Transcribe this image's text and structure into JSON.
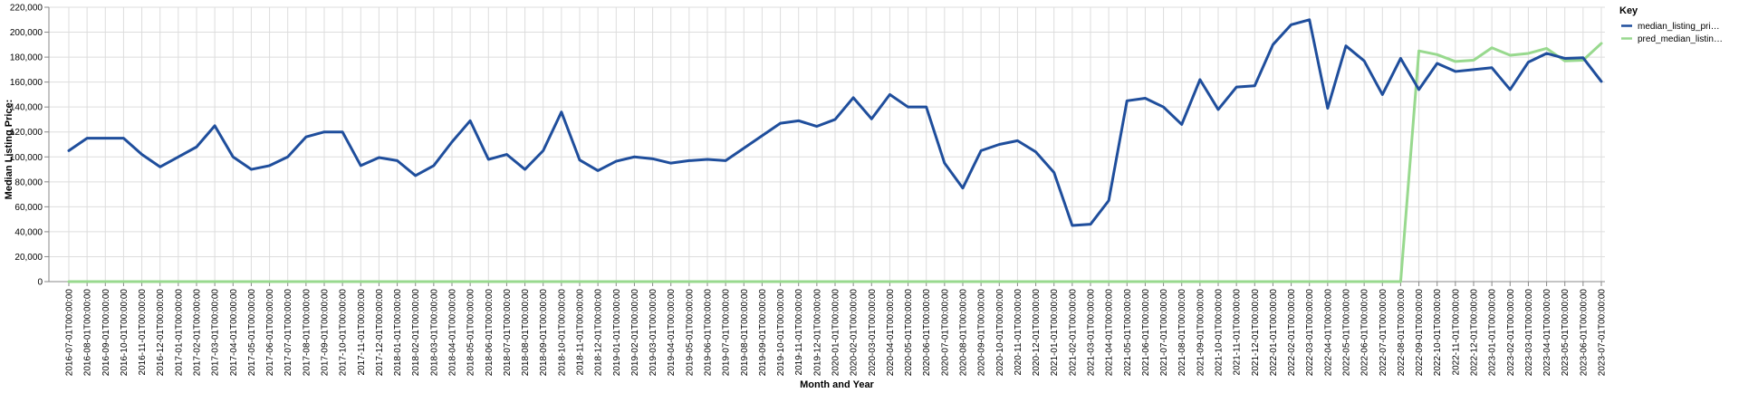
{
  "chart_data": {
    "type": "line",
    "xlabel": "Month and Year",
    "ylabel": "Median Listing Price:",
    "ylim": [
      0,
      220000
    ],
    "yticks": [
      0,
      20000,
      40000,
      60000,
      80000,
      100000,
      120000,
      140000,
      160000,
      180000,
      200000,
      220000
    ],
    "ytick_labels": [
      "0",
      "20,000",
      "40,000",
      "60,000",
      "80,000",
      "100,000",
      "120,000",
      "140,000",
      "160,000",
      "180,000",
      "200,000",
      "220,000"
    ],
    "grid": true,
    "legend": {
      "title": "Key",
      "position": "right",
      "entries": [
        {
          "label": "median_listing_pri…",
          "color": "#1f4e9c"
        },
        {
          "label": "pred_median_listin…",
          "color": "#98d98e"
        }
      ]
    },
    "categories": [
      "2016-07-01T00:00:00",
      "2016-08-01T00:00:00",
      "2016-09-01T00:00:00",
      "2016-10-01T00:00:00",
      "2016-11-01T00:00:00",
      "2016-12-01T00:00:00",
      "2017-01-01T00:00:00",
      "2017-02-01T00:00:00",
      "2017-03-01T00:00:00",
      "2017-04-01T00:00:00",
      "2017-05-01T00:00:00",
      "2017-06-01T00:00:00",
      "2017-07-01T00:00:00",
      "2017-08-01T00:00:00",
      "2017-09-01T00:00:00",
      "2017-10-01T00:00:00",
      "2017-11-01T00:00:00",
      "2017-12-01T00:00:00",
      "2018-01-01T00:00:00",
      "2018-02-01T00:00:00",
      "2018-03-01T00:00:00",
      "2018-04-01T00:00:00",
      "2018-05-01T00:00:00",
      "2018-06-01T00:00:00",
      "2018-07-01T00:00:00",
      "2018-08-01T00:00:00",
      "2018-09-01T00:00:00",
      "2018-10-01T00:00:00",
      "2018-11-01T00:00:00",
      "2018-12-01T00:00:00",
      "2019-01-01T00:00:00",
      "2019-02-01T00:00:00",
      "2019-03-01T00:00:00",
      "2019-04-01T00:00:00",
      "2019-05-01T00:00:00",
      "2019-06-01T00:00:00",
      "2019-07-01T00:00:00",
      "2019-08-01T00:00:00",
      "2019-09-01T00:00:00",
      "2019-10-01T00:00:00",
      "2019-11-01T00:00:00",
      "2019-12-01T00:00:00",
      "2020-01-01T00:00:00",
      "2020-02-01T00:00:00",
      "2020-03-01T00:00:00",
      "2020-04-01T00:00:00",
      "2020-05-01T00:00:00",
      "2020-06-01T00:00:00",
      "2020-07-01T00:00:00",
      "2020-08-01T00:00:00",
      "2020-09-01T00:00:00",
      "2020-10-01T00:00:00",
      "2020-11-01T00:00:00",
      "2020-12-01T00:00:00",
      "2021-01-01T00:00:00",
      "2021-02-01T00:00:00",
      "2021-03-01T00:00:00",
      "2021-04-01T00:00:00",
      "2021-05-01T00:00:00",
      "2021-06-01T00:00:00",
      "2021-07-01T00:00:00",
      "2021-08-01T00:00:00",
      "2021-09-01T00:00:00",
      "2021-10-01T00:00:00",
      "2021-11-01T00:00:00",
      "2021-12-01T00:00:00",
      "2022-01-01T00:00:00",
      "2022-02-01T00:00:00",
      "2022-03-01T00:00:00",
      "2022-04-01T00:00:00",
      "2022-05-01T00:00:00",
      "2022-06-01T00:00:00",
      "2022-07-01T00:00:00",
      "2022-08-01T00:00:00",
      "2022-09-01T00:00:00",
      "2022-10-01T00:00:00",
      "2022-11-01T00:00:00",
      "2022-12-01T00:00:00",
      "2023-01-01T00:00:00",
      "2023-02-01T00:00:00",
      "2023-03-01T00:00:00",
      "2023-04-01T00:00:00",
      "2023-05-01T00:00:00",
      "2023-06-01T00:00:00",
      "2023-07-01T00:00:00"
    ],
    "series": [
      {
        "name": "median_listing_pri…",
        "color": "#1f4e9c",
        "values": [
          105000,
          115000,
          115000,
          115000,
          102000,
          92000,
          100000,
          108000,
          125000,
          100000,
          90000,
          93000,
          100000,
          116000,
          120000,
          120000,
          93000,
          99500,
          97000,
          85000,
          93000,
          112000,
          129000,
          98000,
          102000,
          90000,
          105000,
          136000,
          97500,
          89000,
          96500,
          100000,
          98500,
          95000,
          97000,
          98000,
          97000,
          107000,
          117000,
          127000,
          129000,
          124500,
          130000,
          147500,
          130500,
          150000,
          140000,
          140000,
          95000,
          75000,
          105000,
          110000,
          113000,
          104000,
          87500,
          45000,
          46000,
          65000,
          145000,
          147000,
          140000,
          126000,
          162000,
          138000,
          156000,
          157000,
          190000,
          206000,
          210000,
          139000,
          189000,
          177000,
          150000,
          179000,
          154000,
          175000,
          168500,
          170000,
          171500,
          154000,
          176000,
          183000,
          179000,
          179500,
          160500
        ]
      },
      {
        "name": "pred_median_listin…",
        "color": "#98d98e",
        "values": [
          0,
          0,
          0,
          0,
          0,
          0,
          0,
          0,
          0,
          0,
          0,
          0,
          0,
          0,
          0,
          0,
          0,
          0,
          0,
          0,
          0,
          0,
          0,
          0,
          0,
          0,
          0,
          0,
          0,
          0,
          0,
          0,
          0,
          0,
          0,
          0,
          0,
          0,
          0,
          0,
          0,
          0,
          0,
          0,
          0,
          0,
          0,
          0,
          0,
          0,
          0,
          0,
          0,
          0,
          0,
          0,
          0,
          0,
          0,
          0,
          0,
          0,
          0,
          0,
          0,
          0,
          0,
          0,
          0,
          0,
          0,
          0,
          0,
          0,
          185000,
          182000,
          176500,
          177500,
          187500,
          181500,
          183000,
          187000,
          177000,
          177500,
          191000
        ]
      }
    ]
  }
}
